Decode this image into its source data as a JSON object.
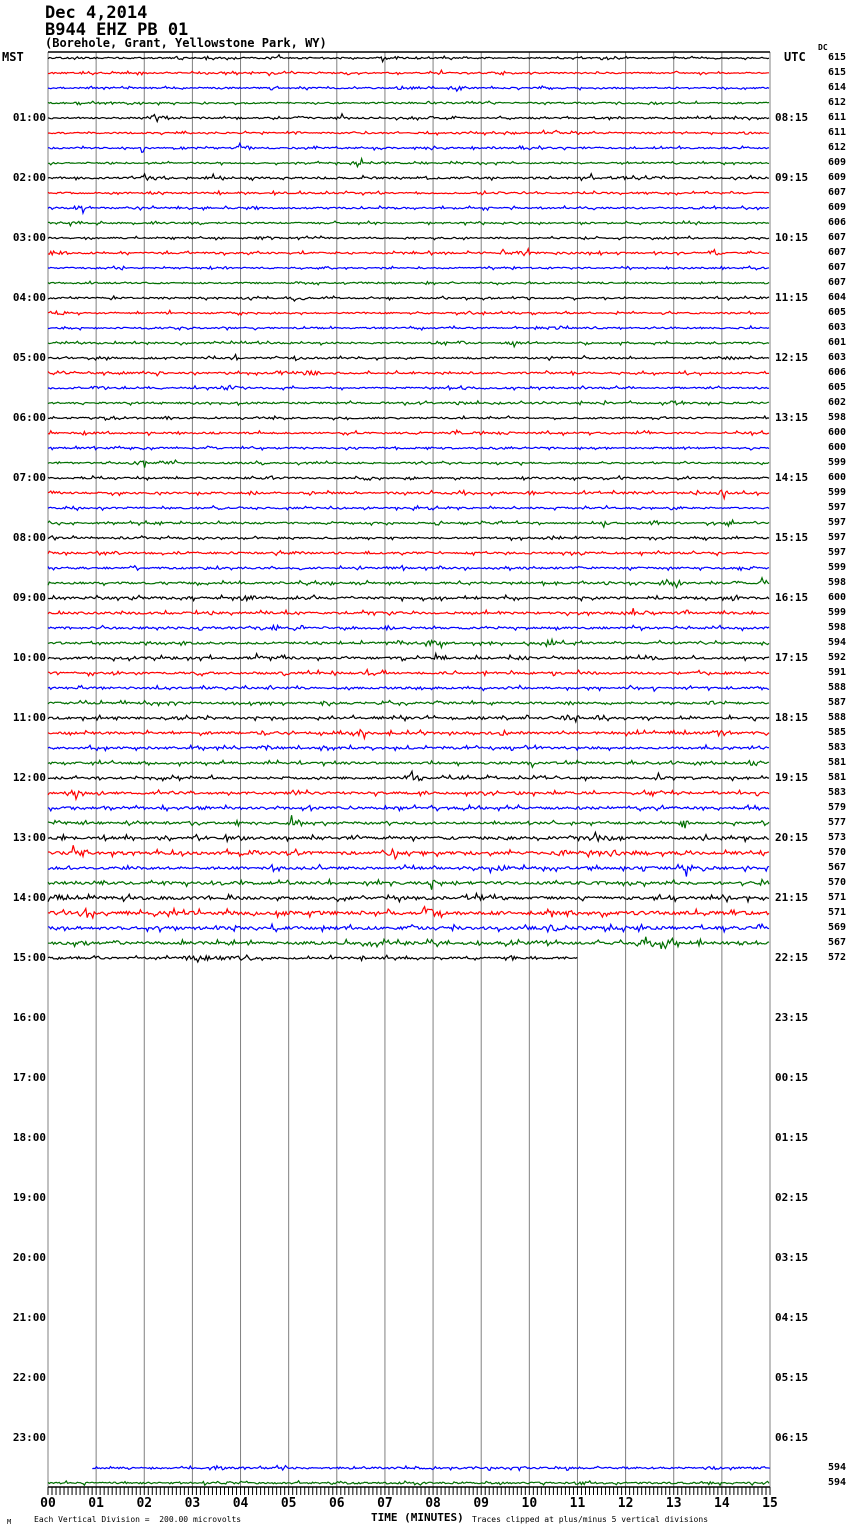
{
  "title": {
    "line1": "Dec 4,2014",
    "line2": "B944 EHZ PB 01",
    "line3": "(Borehole, Grant, Yellowstone Park, WY)"
  },
  "headers": {
    "left": "MST",
    "right": "UTC",
    "dc": "DC"
  },
  "footer": {
    "marker": "M",
    "left": "Each Vertical Division =  200.00 microvolts",
    "center": "TIME (MINUTES)",
    "right": "Traces clipped at plus/minus 5 vertical divisions"
  },
  "colors": {
    "trace_cycle": [
      "#000000",
      "#ff0000",
      "#0000ff",
      "#006f00"
    ],
    "grid": "#808080",
    "axis": "#000000",
    "background": "#ffffff"
  },
  "x_axis": {
    "labels": [
      "00",
      "01",
      "02",
      "03",
      "04",
      "05",
      "06",
      "07",
      "08",
      "09",
      "10",
      "11",
      "12",
      "13",
      "14",
      "15"
    ],
    "minutes": [
      0,
      15
    ],
    "ticks_per_minute": 12
  },
  "hour_rows": [
    {
      "row": 4,
      "mst": "01:00",
      "utc": "08:15"
    },
    {
      "row": 8,
      "mst": "02:00",
      "utc": "09:15"
    },
    {
      "row": 12,
      "mst": "03:00",
      "utc": "10:15"
    },
    {
      "row": 16,
      "mst": "04:00",
      "utc": "11:15"
    },
    {
      "row": 20,
      "mst": "05:00",
      "utc": "12:15"
    },
    {
      "row": 24,
      "mst": "06:00",
      "utc": "13:15"
    },
    {
      "row": 28,
      "mst": "07:00",
      "utc": "14:15"
    },
    {
      "row": 32,
      "mst": "08:00",
      "utc": "15:15"
    },
    {
      "row": 36,
      "mst": "09:00",
      "utc": "16:15"
    },
    {
      "row": 40,
      "mst": "10:00",
      "utc": "17:15"
    },
    {
      "row": 44,
      "mst": "11:00",
      "utc": "18:15"
    },
    {
      "row": 48,
      "mst": "12:00",
      "utc": "19:15"
    },
    {
      "row": 52,
      "mst": "13:00",
      "utc": "20:15"
    },
    {
      "row": 56,
      "mst": "14:00",
      "utc": "21:15"
    },
    {
      "row": 60,
      "mst": "15:00",
      "utc": "22:15"
    },
    {
      "row": 64,
      "mst": "16:00",
      "utc": "23:15"
    },
    {
      "row": 68,
      "mst": "17:00",
      "utc": "00:15"
    },
    {
      "row": 72,
      "mst": "18:00",
      "utc": "01:15"
    },
    {
      "row": 76,
      "mst": "19:00",
      "utc": "02:15"
    },
    {
      "row": 80,
      "mst": "20:00",
      "utc": "03:15"
    },
    {
      "row": 84,
      "mst": "21:00",
      "utc": "04:15"
    },
    {
      "row": 88,
      "mst": "22:00",
      "utc": "05:15"
    },
    {
      "row": 92,
      "mst": "23:00",
      "utc": "06:15"
    }
  ],
  "chart_data": {
    "type": "line",
    "subtype": "helicorder-seismogram",
    "title": "B944 EHZ PB 01",
    "date": "Dec 4,2014",
    "location": "(Borehole, Grant, Yellowstone Park, WY)",
    "xlabel": "TIME (MINUTES)",
    "x_range_minutes": [
      0,
      15
    ],
    "row_duration_minutes": 15,
    "rows_per_hour": 4,
    "total_row_slots": 96,
    "vertical_division": "200.00 microvolts",
    "clipping": "plus/minus 5 vertical divisions",
    "traces": [
      {
        "row": 0,
        "dc": "615",
        "amp": 1.0
      },
      {
        "row": 1,
        "dc": "615",
        "amp": 1.0
      },
      {
        "row": 2,
        "dc": "614",
        "amp": 1.0
      },
      {
        "row": 3,
        "dc": "612",
        "amp": 1.0
      },
      {
        "row": 4,
        "dc": "611",
        "amp": 1.1,
        "bursts": [
          [
            2.1,
            2.5,
            2.4
          ]
        ]
      },
      {
        "row": 5,
        "dc": "611",
        "amp": 1.0
      },
      {
        "row": 6,
        "dc": "612",
        "amp": 1.1
      },
      {
        "row": 7,
        "dc": "609",
        "amp": 1.0
      },
      {
        "row": 8,
        "dc": "609",
        "amp": 1.3,
        "bursts": [
          [
            1.9,
            2.5,
            2.0
          ]
        ]
      },
      {
        "row": 9,
        "dc": "607",
        "amp": 1.1
      },
      {
        "row": 10,
        "dc": "609",
        "amp": 1.1
      },
      {
        "row": 11,
        "dc": "606",
        "amp": 1.0
      },
      {
        "row": 12,
        "dc": "607",
        "amp": 1.0
      },
      {
        "row": 13,
        "dc": "607",
        "amp": 1.1,
        "bursts": [
          [
            9.8,
            10.1,
            2.2
          ]
        ]
      },
      {
        "row": 14,
        "dc": "607",
        "amp": 1.0
      },
      {
        "row": 15,
        "dc": "607",
        "amp": 1.0
      },
      {
        "row": 16,
        "dc": "604",
        "amp": 1.1,
        "bursts": [
          [
            5.1,
            5.4,
            2.3
          ]
        ]
      },
      {
        "row": 17,
        "dc": "605",
        "amp": 1.0
      },
      {
        "row": 18,
        "dc": "603",
        "amp": 1.1
      },
      {
        "row": 19,
        "dc": "601",
        "amp": 1.1
      },
      {
        "row": 20,
        "dc": "603",
        "amp": 1.2
      },
      {
        "row": 21,
        "dc": "606",
        "amp": 1.2
      },
      {
        "row": 22,
        "dc": "605",
        "amp": 1.1
      },
      {
        "row": 23,
        "dc": "602",
        "amp": 1.2
      },
      {
        "row": 24,
        "dc": "598",
        "amp": 1.1
      },
      {
        "row": 25,
        "dc": "600",
        "amp": 1.2
      },
      {
        "row": 26,
        "dc": "600",
        "amp": 1.1
      },
      {
        "row": 27,
        "dc": "599",
        "amp": 1.1
      },
      {
        "row": 28,
        "dc": "600",
        "amp": 1.2
      },
      {
        "row": 29,
        "dc": "599",
        "amp": 1.3
      },
      {
        "row": 30,
        "dc": "597",
        "amp": 1.2
      },
      {
        "row": 31,
        "dc": "597",
        "amp": 1.2
      },
      {
        "row": 32,
        "dc": "597",
        "amp": 1.2
      },
      {
        "row": 33,
        "dc": "597",
        "amp": 1.3
      },
      {
        "row": 34,
        "dc": "599",
        "amp": 1.3
      },
      {
        "row": 35,
        "dc": "598",
        "amp": 1.3,
        "bursts": [
          [
            12.7,
            13.2,
            3.0
          ]
        ]
      },
      {
        "row": 36,
        "dc": "600",
        "amp": 1.6
      },
      {
        "row": 37,
        "dc": "599",
        "amp": 1.5
      },
      {
        "row": 38,
        "dc": "598",
        "amp": 1.4
      },
      {
        "row": 39,
        "dc": "594",
        "amp": 1.4
      },
      {
        "row": 40,
        "dc": "592",
        "amp": 1.5
      },
      {
        "row": 41,
        "dc": "591",
        "amp": 1.5
      },
      {
        "row": 42,
        "dc": "588",
        "amp": 1.4
      },
      {
        "row": 43,
        "dc": "587",
        "amp": 1.4
      },
      {
        "row": 44,
        "dc": "588",
        "amp": 1.5
      },
      {
        "row": 45,
        "dc": "585",
        "amp": 1.6
      },
      {
        "row": 46,
        "dc": "583",
        "amp": 1.5
      },
      {
        "row": 47,
        "dc": "581",
        "amp": 1.5
      },
      {
        "row": 48,
        "dc": "581",
        "amp": 1.5
      },
      {
        "row": 49,
        "dc": "583",
        "amp": 1.6
      },
      {
        "row": 50,
        "dc": "579",
        "amp": 1.6
      },
      {
        "row": 51,
        "dc": "577",
        "amp": 1.5
      },
      {
        "row": 52,
        "dc": "573",
        "amp": 1.9
      },
      {
        "row": 53,
        "dc": "570",
        "amp": 2.0
      },
      {
        "row": 54,
        "dc": "567",
        "amp": 1.8
      },
      {
        "row": 55,
        "dc": "570",
        "amp": 1.9
      },
      {
        "row": 56,
        "dc": "571",
        "amp": 2.0
      },
      {
        "row": 57,
        "dc": "571",
        "amp": 2.4
      },
      {
        "row": 58,
        "dc": "569",
        "amp": 2.1
      },
      {
        "row": 59,
        "dc": "567",
        "amp": 2.0,
        "bursts": [
          [
            12.2,
            13.0,
            2.2
          ]
        ]
      },
      {
        "row": 60,
        "dc": "572",
        "amp": 1.4,
        "end_min": 11.0,
        "bursts": [
          [
            2.8,
            4.3,
            2.3
          ]
        ]
      },
      {
        "row": 94,
        "dc": "594",
        "amp": 1.3,
        "start_min": 0.92
      },
      {
        "row": 95,
        "dc": "594",
        "amp": 1.2
      }
    ]
  }
}
